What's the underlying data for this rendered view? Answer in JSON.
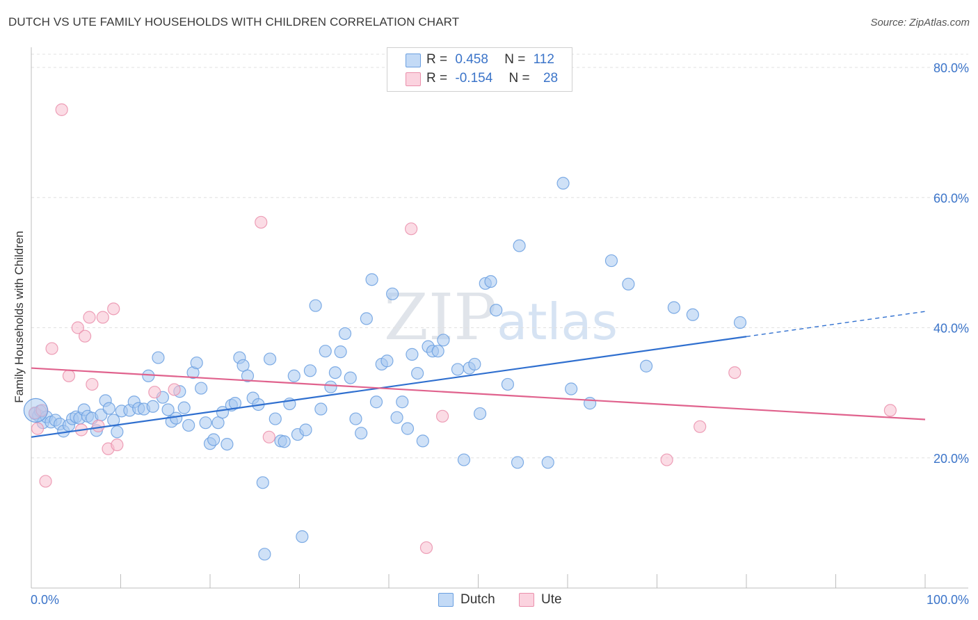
{
  "title": "DUTCH VS UTE FAMILY HOUSEHOLDS WITH CHILDREN CORRELATION CHART",
  "source": "Source: ZipAtlas.com",
  "legend": {
    "r_label": "R =",
    "n_label": "N =",
    "series": [
      {
        "name": "Dutch",
        "r": "0.458",
        "n": "112"
      },
      {
        "name": "Ute",
        "r": "-0.154",
        "n": "28"
      }
    ]
  },
  "colors": {
    "dutch_fill": "#a8c8f0",
    "dutch_stroke": "#6a9fe0",
    "dutch_line": "#2f6fcf",
    "ute_fill": "#f7bfd0",
    "ute_stroke": "#ea8fab",
    "ute_line": "#e0628d",
    "tick_label": "#3b74c9",
    "grid": "#e0e0e0"
  },
  "chart_data": {
    "type": "scatter",
    "title": "DUTCH VS UTE FAMILY HOUSEHOLDS WITH CHILDREN CORRELATION CHART",
    "xlabel": "",
    "ylabel": "Family Households with Children",
    "xlim": [
      0,
      100
    ],
    "ylim": [
      0,
      80
    ],
    "x_tick_labels": [
      "0.0%",
      "100.0%"
    ],
    "y_ticks": [
      20,
      40,
      60,
      80
    ],
    "y_tick_labels": [
      "20.0%",
      "40.0%",
      "60.0%",
      "80.0%"
    ],
    "watermark": "ZIPatlas",
    "series": [
      {
        "name": "Dutch",
        "trend": {
          "x0": 0,
          "y0": 23.2,
          "x1": 100,
          "y1": 42.5,
          "solid_until": 80
        },
        "points": [
          [
            0.4,
            26.8
          ],
          [
            0.8,
            26.5
          ],
          [
            1.0,
            27.2
          ],
          [
            1.3,
            25.4
          ],
          [
            1.7,
            26.3
          ],
          [
            2.2,
            25.5
          ],
          [
            2.7,
            25.8
          ],
          [
            3.2,
            25.2
          ],
          [
            3.6,
            24.1
          ],
          [
            4.2,
            25.0
          ],
          [
            4.6,
            26.0
          ],
          [
            5.0,
            26.3
          ],
          [
            5.4,
            26.1
          ],
          [
            5.9,
            27.4
          ],
          [
            6.3,
            26.4
          ],
          [
            6.8,
            26.1
          ],
          [
            7.3,
            24.2
          ],
          [
            7.8,
            26.6
          ],
          [
            8.3,
            28.8
          ],
          [
            8.7,
            27.6
          ],
          [
            9.2,
            25.8
          ],
          [
            9.6,
            24.0
          ],
          [
            10.1,
            27.2
          ],
          [
            11.0,
            27.3
          ],
          [
            11.5,
            28.6
          ],
          [
            12.0,
            27.6
          ],
          [
            12.6,
            27.5
          ],
          [
            13.1,
            32.6
          ],
          [
            13.6,
            27.9
          ],
          [
            14.2,
            35.4
          ],
          [
            14.7,
            29.3
          ],
          [
            15.3,
            27.4
          ],
          [
            15.7,
            25.6
          ],
          [
            16.2,
            26.1
          ],
          [
            16.6,
            30.2
          ],
          [
            17.1,
            27.7
          ],
          [
            17.6,
            25.0
          ],
          [
            18.1,
            33.1
          ],
          [
            18.5,
            34.6
          ],
          [
            19.0,
            30.7
          ],
          [
            19.5,
            25.4
          ],
          [
            20.0,
            22.2
          ],
          [
            20.4,
            22.8
          ],
          [
            20.9,
            25.4
          ],
          [
            21.4,
            27.0
          ],
          [
            21.9,
            22.1
          ],
          [
            22.4,
            28.1
          ],
          [
            22.8,
            28.4
          ],
          [
            23.3,
            35.4
          ],
          [
            23.7,
            34.2
          ],
          [
            24.2,
            32.6
          ],
          [
            24.8,
            29.2
          ],
          [
            25.4,
            28.2
          ],
          [
            25.9,
            16.2
          ],
          [
            26.1,
            5.2
          ],
          [
            26.7,
            35.2
          ],
          [
            27.3,
            26.0
          ],
          [
            27.9,
            22.6
          ],
          [
            28.3,
            22.5
          ],
          [
            28.9,
            28.3
          ],
          [
            29.4,
            32.6
          ],
          [
            29.8,
            23.6
          ],
          [
            30.3,
            7.9
          ],
          [
            30.7,
            24.3
          ],
          [
            31.2,
            33.4
          ],
          [
            31.8,
            43.4
          ],
          [
            32.4,
            27.5
          ],
          [
            32.9,
            36.4
          ],
          [
            33.5,
            30.9
          ],
          [
            34.0,
            33.1
          ],
          [
            34.6,
            36.3
          ],
          [
            35.1,
            39.1
          ],
          [
            35.7,
            32.3
          ],
          [
            36.3,
            26.0
          ],
          [
            36.9,
            23.8
          ],
          [
            37.5,
            41.4
          ],
          [
            38.1,
            47.4
          ],
          [
            38.6,
            28.6
          ],
          [
            39.2,
            34.4
          ],
          [
            39.8,
            34.9
          ],
          [
            40.4,
            45.2
          ],
          [
            40.9,
            26.2
          ],
          [
            41.5,
            28.6
          ],
          [
            42.1,
            24.5
          ],
          [
            42.6,
            35.9
          ],
          [
            43.2,
            33.0
          ],
          [
            43.8,
            22.6
          ],
          [
            44.4,
            37.1
          ],
          [
            44.9,
            36.4
          ],
          [
            45.5,
            36.4
          ],
          [
            46.1,
            38.1
          ],
          [
            47.7,
            33.6
          ],
          [
            48.4,
            19.7
          ],
          [
            49.0,
            33.8
          ],
          [
            49.6,
            34.4
          ],
          [
            50.2,
            26.8
          ],
          [
            50.8,
            46.8
          ],
          [
            51.4,
            47.1
          ],
          [
            52.0,
            42.7
          ],
          [
            53.3,
            31.3
          ],
          [
            54.4,
            19.3
          ],
          [
            54.6,
            52.6
          ],
          [
            59.5,
            62.2
          ],
          [
            64.9,
            50.3
          ],
          [
            74.0,
            42.0
          ],
          [
            79.3,
            40.8
          ],
          [
            68.8,
            34.1
          ],
          [
            66.8,
            46.7
          ],
          [
            71.9,
            43.1
          ],
          [
            62.5,
            28.4
          ],
          [
            60.4,
            30.6
          ],
          [
            57.8,
            19.3
          ]
        ]
      },
      {
        "name": "Ute",
        "trend": {
          "x0": 0,
          "y0": 33.8,
          "x1": 100,
          "y1": 25.9
        },
        "points": [
          [
            0.4,
            26.9
          ],
          [
            0.7,
            24.5
          ],
          [
            1.2,
            27.3
          ],
          [
            1.6,
            16.4
          ],
          [
            2.3,
            36.8
          ],
          [
            3.4,
            73.5
          ],
          [
            4.2,
            32.6
          ],
          [
            5.2,
            40.0
          ],
          [
            5.6,
            24.3
          ],
          [
            6.0,
            38.7
          ],
          [
            6.5,
            41.6
          ],
          [
            6.8,
            31.3
          ],
          [
            7.5,
            24.9
          ],
          [
            8.0,
            41.6
          ],
          [
            8.6,
            21.4
          ],
          [
            9.2,
            42.9
          ],
          [
            9.6,
            22.0
          ],
          [
            13.8,
            30.1
          ],
          [
            16.0,
            30.5
          ],
          [
            25.7,
            56.2
          ],
          [
            26.6,
            23.2
          ],
          [
            42.5,
            55.2
          ],
          [
            44.2,
            6.2
          ],
          [
            46.0,
            26.4
          ],
          [
            71.1,
            19.7
          ],
          [
            74.8,
            24.8
          ],
          [
            78.7,
            33.1
          ],
          [
            96.1,
            27.3
          ]
        ]
      }
    ]
  }
}
